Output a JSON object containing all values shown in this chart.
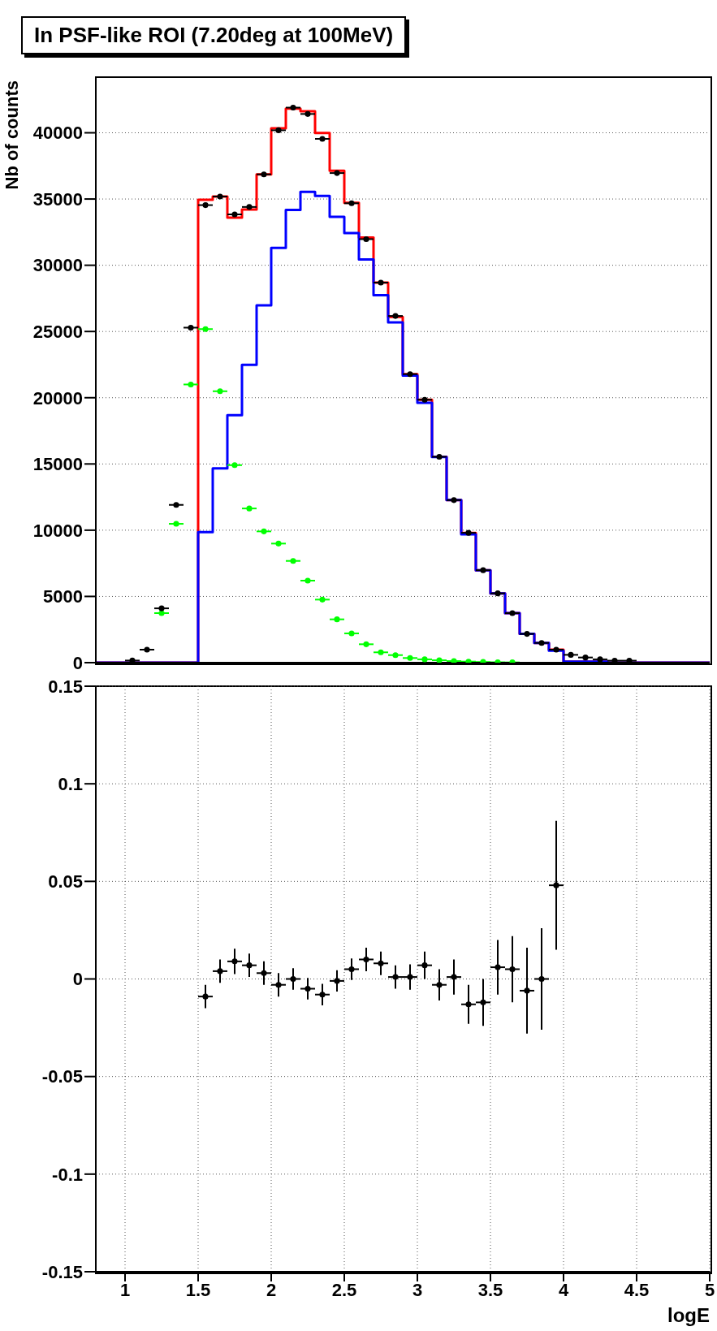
{
  "chart_data": [
    {
      "type": "histogram",
      "title": "In PSF-like ROI (7.20deg at 100MeV)",
      "ylabel": "Nb of counts",
      "bins": [
        0.8,
        0.9,
        1.0,
        1.1,
        1.2,
        1.3,
        1.4,
        1.5,
        1.6,
        1.7,
        1.8,
        1.9,
        2.0,
        2.1,
        2.2,
        2.3,
        2.4,
        2.5,
        2.6,
        2.7,
        2.8,
        2.9,
        3.0,
        3.1,
        3.2,
        3.3,
        3.4,
        3.5,
        3.6,
        3.7,
        3.8,
        3.9,
        4.0,
        4.1,
        4.2,
        4.3,
        4.4,
        4.5,
        4.6,
        4.7,
        4.8,
        4.9,
        5.0
      ],
      "series": [
        {
          "type": "histogram",
          "color": "#ff0000",
          "values": [
            0,
            0,
            0,
            0,
            0,
            0,
            0,
            34940,
            35190,
            33590,
            34210,
            36860,
            40340,
            41830,
            41620,
            39990,
            37130,
            34720,
            32090,
            28690,
            26100,
            21780,
            19850,
            15540,
            12270,
            9800,
            6980,
            5230,
            3740,
            2170,
            1490,
            980,
            80,
            80,
            80,
            0,
            0,
            0,
            0,
            0,
            0,
            0
          ]
        },
        {
          "type": "histogram",
          "color": "#0000ff",
          "values": [
            0,
            0,
            0,
            0,
            0,
            0,
            0,
            9860,
            14660,
            18690,
            22490,
            26980,
            31310,
            34170,
            35540,
            35230,
            33660,
            32430,
            30430,
            27740,
            25690,
            21670,
            19610,
            15520,
            12270,
            9690,
            6980,
            5230,
            3740,
            2170,
            1490,
            900,
            80,
            80,
            80,
            0,
            0,
            0,
            0,
            0,
            0,
            0
          ]
        },
        {
          "type": "scatter",
          "color": "#00ff00",
          "x": [
            1.25,
            1.35,
            1.45,
            1.55,
            1.65,
            1.75,
            1.85,
            1.95,
            2.05,
            2.15,
            2.25,
            2.35,
            2.45,
            2.55,
            2.65,
            2.75,
            2.85,
            2.95,
            3.05,
            3.15,
            3.25,
            3.35,
            3.45,
            3.55,
            3.65
          ],
          "values": [
            3740,
            10480,
            21000,
            25180,
            20490,
            14910,
            11640,
            9910,
            8990,
            7680,
            6190,
            4760,
            3270,
            2210,
            1390,
            780,
            570,
            350,
            250,
            180,
            120,
            80,
            50,
            30,
            20
          ],
          "xerrors": [
            0.05,
            0.05,
            0.05,
            0.05,
            0.05,
            0.05,
            0.05,
            0.05,
            0.05,
            0.05,
            0.05,
            0.05,
            0.05,
            0.05,
            0.05,
            0.05,
            0.05,
            0.05,
            0.05,
            0.05,
            0.05,
            0.05,
            0.05,
            0.05,
            0.05
          ]
        },
        {
          "type": "scatter",
          "color": "#000000",
          "x": [
            1.05,
            1.15,
            1.25,
            1.35,
            1.45,
            1.55,
            1.65,
            1.75,
            1.85,
            1.95,
            2.05,
            2.15,
            2.25,
            2.35,
            2.45,
            2.55,
            2.65,
            2.75,
            2.85,
            2.95,
            3.05,
            3.15,
            3.25,
            3.35,
            3.45,
            3.55,
            3.65,
            3.75,
            3.85,
            3.95,
            4.05,
            4.15,
            4.25,
            4.35,
            4.45
          ],
          "values": [
            160,
            980,
            4100,
            11910,
            25290,
            34540,
            35190,
            33840,
            34400,
            36860,
            40190,
            41900,
            41420,
            39540,
            36960,
            34680,
            31970,
            28690,
            26170,
            21780,
            19850,
            15540,
            12270,
            9800,
            6980,
            5230,
            3740,
            2170,
            1490,
            980,
            590,
            390,
            250,
            150,
            150
          ],
          "xerrors": [
            0.05,
            0.05,
            0.05,
            0.05,
            0.05,
            0.05,
            0.05,
            0.05,
            0.05,
            0.05,
            0.05,
            0.05,
            0.05,
            0.05,
            0.05,
            0.05,
            0.05,
            0.05,
            0.05,
            0.05,
            0.05,
            0.05,
            0.05,
            0.05,
            0.05,
            0.05,
            0.05,
            0.05,
            0.05,
            0.05,
            0.05,
            0.05,
            0.05,
            0.05,
            0.05
          ]
        }
      ],
      "xlim": [
        0.8,
        5
      ],
      "xticks": [
        1,
        1.5,
        2,
        2.5,
        3,
        3.5,
        4,
        4.5,
        5
      ],
      "ylim": [
        0,
        44200
      ],
      "yticks": [
        0,
        5000,
        10000,
        15000,
        20000,
        25000,
        30000,
        35000,
        40000
      ],
      "grid": true,
      "tick_labels": "y",
      "marker": "circle"
    },
    {
      "type": "scatter",
      "xlabel": "logE",
      "color": "#000000",
      "x": [
        1.55,
        1.65,
        1.75,
        1.85,
        1.95,
        2.05,
        2.15,
        2.25,
        2.35,
        2.45,
        2.55,
        2.65,
        2.75,
        2.85,
        2.95,
        3.05,
        3.15,
        3.25,
        3.35,
        3.45,
        3.55,
        3.65,
        3.75,
        3.85,
        3.95
      ],
      "values": [
        -0.009,
        0.004,
        0.009,
        0.007,
        0.003,
        -0.003,
        0.0,
        -0.005,
        -0.008,
        -0.001,
        0.005,
        0.01,
        0.008,
        0.001,
        0.001,
        0.007,
        -0.003,
        0.001,
        -0.013,
        -0.012,
        0.006,
        0.005,
        -0.006,
        0.0,
        0.048
      ],
      "errors": [
        0.006,
        0.006,
        0.0065,
        0.006,
        0.006,
        0.006,
        0.0055,
        0.0055,
        0.0055,
        0.0055,
        0.0055,
        0.006,
        0.006,
        0.006,
        0.0065,
        0.007,
        0.008,
        0.009,
        0.01,
        0.012,
        0.014,
        0.017,
        0.022,
        0.026,
        0.033
      ],
      "xerrors": [
        0.05,
        0.05,
        0.05,
        0.05,
        0.05,
        0.05,
        0.05,
        0.05,
        0.05,
        0.05,
        0.05,
        0.05,
        0.05,
        0.05,
        0.05,
        0.05,
        0.05,
        0.05,
        0.05,
        0.05,
        0.05,
        0.05,
        0.05,
        0.05,
        0.05
      ],
      "xlim": [
        0.8,
        5
      ],
      "xticks": [
        1,
        1.5,
        2,
        2.5,
        3,
        3.5,
        4,
        4.5,
        5
      ],
      "ylim": [
        -0.15,
        0.15
      ],
      "yticks": [
        -0.15,
        -0.1,
        -0.05,
        0,
        0.05,
        0.1,
        0.15
      ],
      "grid": true,
      "marker": "circle"
    }
  ]
}
